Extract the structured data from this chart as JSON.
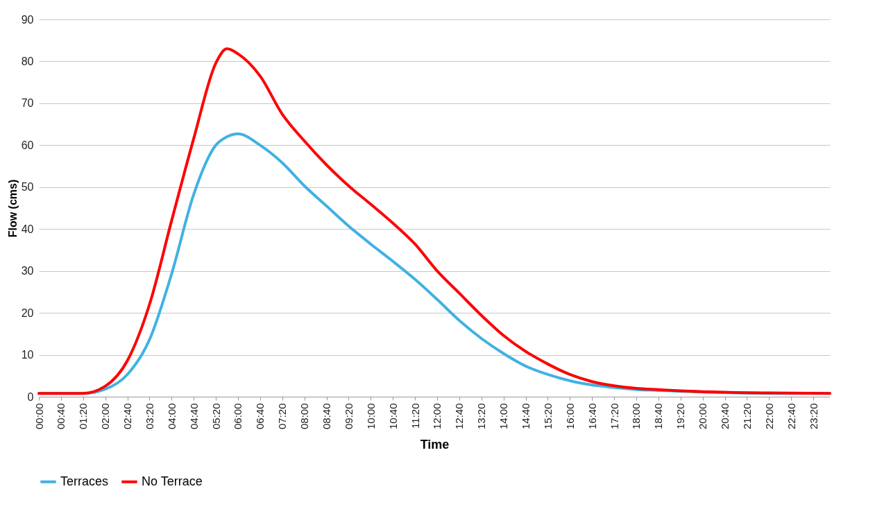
{
  "chart_data": {
    "type": "line",
    "xlabel": "Time",
    "ylabel": "Flow (cms)",
    "x": [
      0,
      1.3333,
      2,
      2.6667,
      3.3333,
      4,
      4.6667,
      5.3333,
      5.6667,
      6,
      6.6667,
      7.3333,
      8,
      8.6667,
      9.3333,
      10,
      10.6667,
      11.3333,
      12,
      12.6667,
      13.3333,
      14,
      14.6667,
      15.3333,
      16,
      16.6667,
      17.3333,
      18,
      18.6667,
      19.3333,
      20,
      21,
      22,
      23.8333
    ],
    "series": [
      {
        "name": "Terraces",
        "color": "#41b1e3",
        "values": [
          0.8,
          0.8,
          1.8,
          5.3,
          13.6,
          29.3,
          48.3,
          60,
          62,
          62.7,
          60,
          55.8,
          50.3,
          45.5,
          40.7,
          36.4,
          32.3,
          28,
          23.2,
          18.2,
          13.9,
          10.3,
          7.3,
          5.3,
          3.8,
          2.8,
          2.2,
          1.7,
          1.5,
          1.3,
          1.1,
          0.9,
          0.8,
          0.8
        ]
      },
      {
        "name": "No Terrace",
        "color": "#ff0000",
        "values": [
          0.8,
          0.8,
          2.5,
          8.6,
          22,
          42,
          61.6,
          79.6,
          83,
          81.8,
          76.5,
          67.4,
          61,
          55.3,
          50.3,
          45.9,
          41.4,
          36.4,
          30,
          24.7,
          19.4,
          14.6,
          10.8,
          7.8,
          5.3,
          3.6,
          2.6,
          2.0,
          1.7,
          1.4,
          1.2,
          1.0,
          0.9,
          0.8
        ]
      }
    ],
    "xlim": [
      0,
      23.8333
    ],
    "xticks": [
      {
        "value": 0,
        "label": "00:00"
      },
      {
        "value": 0.6667,
        "label": "00:40"
      },
      {
        "value": 1.3333,
        "label": "01:20"
      },
      {
        "value": 2,
        "label": "02:00"
      },
      {
        "value": 2.6667,
        "label": "02:40"
      },
      {
        "value": 3.3333,
        "label": "03:20"
      },
      {
        "value": 4,
        "label": "04:00"
      },
      {
        "value": 4.6667,
        "label": "04:40"
      },
      {
        "value": 5.3333,
        "label": "05:20"
      },
      {
        "value": 6,
        "label": "06:00"
      },
      {
        "value": 6.6667,
        "label": "06:40"
      },
      {
        "value": 7.3333,
        "label": "07:20"
      },
      {
        "value": 8,
        "label": "08:00"
      },
      {
        "value": 8.6667,
        "label": "08:40"
      },
      {
        "value": 9.3333,
        "label": "09:20"
      },
      {
        "value": 10,
        "label": "10:00"
      },
      {
        "value": 10.6667,
        "label": "10:40"
      },
      {
        "value": 11.3333,
        "label": "11:20"
      },
      {
        "value": 12,
        "label": "12:00"
      },
      {
        "value": 12.6667,
        "label": "12:40"
      },
      {
        "value": 13.3333,
        "label": "13:20"
      },
      {
        "value": 14,
        "label": "14:00"
      },
      {
        "value": 14.6667,
        "label": "14:40"
      },
      {
        "value": 15.3333,
        "label": "15:20"
      },
      {
        "value": 16,
        "label": "16:00"
      },
      {
        "value": 16.6667,
        "label": "16:40"
      },
      {
        "value": 17.3333,
        "label": "17:20"
      },
      {
        "value": 18,
        "label": "18:00"
      },
      {
        "value": 18.6667,
        "label": "18:40"
      },
      {
        "value": 19.3333,
        "label": "19:20"
      },
      {
        "value": 20,
        "label": "20:00"
      },
      {
        "value": 20.6667,
        "label": "20:40"
      },
      {
        "value": 21.3333,
        "label": "21:20"
      },
      {
        "value": 22,
        "label": "22:00"
      },
      {
        "value": 22.6667,
        "label": "22:40"
      },
      {
        "value": 23.3333,
        "label": "23:20"
      }
    ],
    "ylim": [
      0,
      90
    ],
    "yticks": [
      0,
      10,
      20,
      30,
      40,
      50,
      60,
      70,
      80,
      90
    ],
    "grid": "y",
    "legend": "bottom",
    "marker": "none",
    "line_style": "solid"
  }
}
